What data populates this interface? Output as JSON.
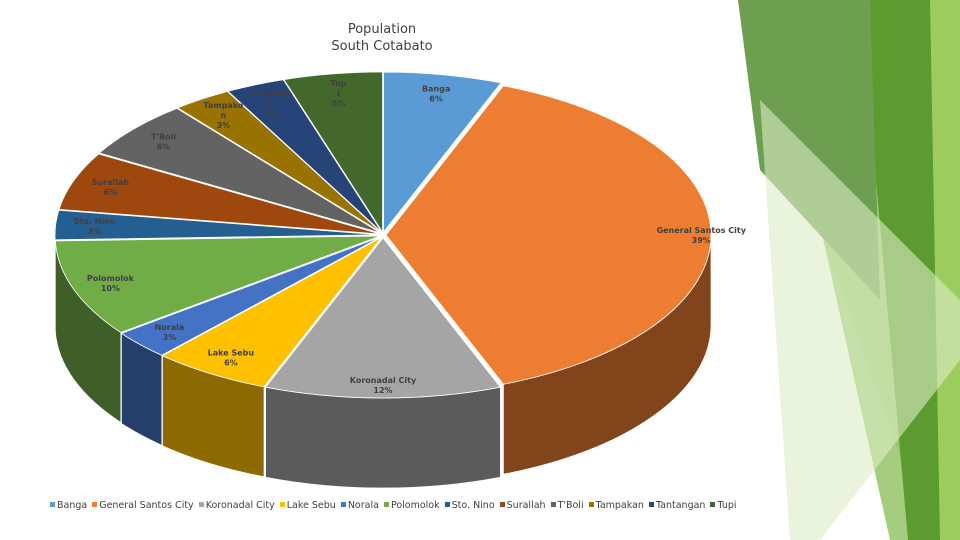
{
  "title_line1": "Population",
  "title_line2": "South Cotabato",
  "chart_data": {
    "type": "pie",
    "title": "Population South Cotabato",
    "legend_position": "bottom",
    "style": "3d-exploded",
    "categories": [
      "Banga",
      "General Santos City",
      "Koronadal City",
      "Lake Sebu",
      "Norala",
      "Polomolok",
      "Sto. Nino",
      "Surallah",
      "T'Boli",
      "Tampakan",
      "Tantangan",
      "Tupi"
    ],
    "values": [
      6,
      39,
      12,
      6,
      3,
      10,
      3,
      6,
      6,
      3,
      3,
      5
    ],
    "colors": [
      "#5B9BD5",
      "#ED7D31",
      "#A5A5A5",
      "#FFC000",
      "#4472C4",
      "#70AD47",
      "#255E91",
      "#9E480E",
      "#636363",
      "#997300",
      "#264478",
      "#43682B"
    ],
    "data_labels": [
      [
        "Banga",
        "6%"
      ],
      [
        "General Santos City",
        "39%"
      ],
      [
        "Koronadal City",
        "12%"
      ],
      [
        "Lake Sebu",
        "6%"
      ],
      [
        "Norala",
        "3%"
      ],
      [
        "Polomolok",
        "10%"
      ],
      [
        "Sto. Nino",
        "3%"
      ],
      [
        "Surallah",
        "6%"
      ],
      [
        "T'Boli",
        "6%"
      ],
      [
        "Tampako",
        "n",
        "3%"
      ],
      [
        "Tantanga",
        "n",
        "3%"
      ],
      [
        "Tup",
        "i",
        "5%"
      ]
    ]
  }
}
